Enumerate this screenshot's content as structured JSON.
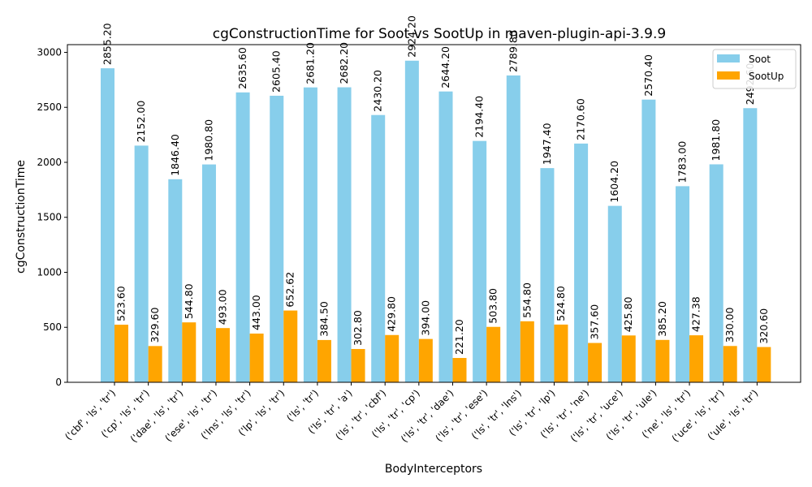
{
  "chart_data": {
    "type": "bar",
    "title": "cgConstructionTime for Soot vs SootUp in maven-plugin-api-3.9.9",
    "xlabel": "BodyInterceptors",
    "ylabel": "cgConstructionTime",
    "ylim": [
      0,
      3070
    ],
    "yticks": [
      0,
      500,
      1000,
      1500,
      2000,
      2500,
      3000
    ],
    "grid": false,
    "legend_position": "top-right",
    "categories": [
      "('cbf', 'ls', 'tr')",
      "('cp', 'ls', 'tr')",
      "('dae', 'ls', 'tr')",
      "('ese', 'ls', 'tr')",
      "('lns', 'ls', 'tr')",
      "('lp', 'ls', 'tr')",
      "('ls', 'tr')",
      "('ls', 'tr', 'a')",
      "('ls', 'tr', 'cbf')",
      "('ls', 'tr', 'cp')",
      "('ls', 'tr', 'dae')",
      "('ls', 'tr', 'ese')",
      "('ls', 'tr', 'lns')",
      "('ls', 'tr', 'lp')",
      "('ls', 'tr', 'ne')",
      "('ls', 'tr', 'uce')",
      "('ls', 'tr', 'ule')",
      "('ne', 'ls', 'tr')",
      "('uce', 'ls', 'tr')",
      "('ule', 'ls', 'tr')"
    ],
    "series": [
      {
        "name": "Soot",
        "color": "#87CEEB",
        "values": [
          2855.2,
          2152.0,
          1846.4,
          1980.8,
          2635.6,
          2605.4,
          2681.2,
          2682.2,
          2430.2,
          2924.2,
          2644.2,
          2194.4,
          2789.8,
          1947.4,
          2170.6,
          1604.2,
          2570.4,
          1783.0,
          1981.8,
          2492.6
        ],
        "labels": [
          "2855.20",
          "2152.00",
          "1846.40",
          "1980.80",
          "2635.60",
          "2605.40",
          "2681.20",
          "2682.20",
          "2430.20",
          "2924.20",
          "2644.20",
          "2194.40",
          "2789.80",
          "1947.40",
          "2170.60",
          "1604.20",
          "2570.40",
          "1783.00",
          "1981.80",
          "2492.60"
        ]
      },
      {
        "name": "SootUp",
        "color": "#FFA500",
        "values": [
          523.6,
          329.6,
          544.8,
          493.0,
          443.0,
          652.62,
          384.5,
          302.8,
          429.8,
          394.0,
          221.2,
          503.8,
          554.8,
          524.8,
          357.6,
          425.8,
          385.2,
          427.38,
          330.0,
          320.6
        ],
        "labels": [
          "523.60",
          "329.60",
          "544.80",
          "493.00",
          "443.00",
          "652.62",
          "384.50",
          "302.80",
          "429.80",
          "394.00",
          "221.20",
          "503.80",
          "554.80",
          "524.80",
          "357.60",
          "425.80",
          "385.20",
          "427.38",
          "330.00",
          "320.60"
        ]
      }
    ]
  }
}
